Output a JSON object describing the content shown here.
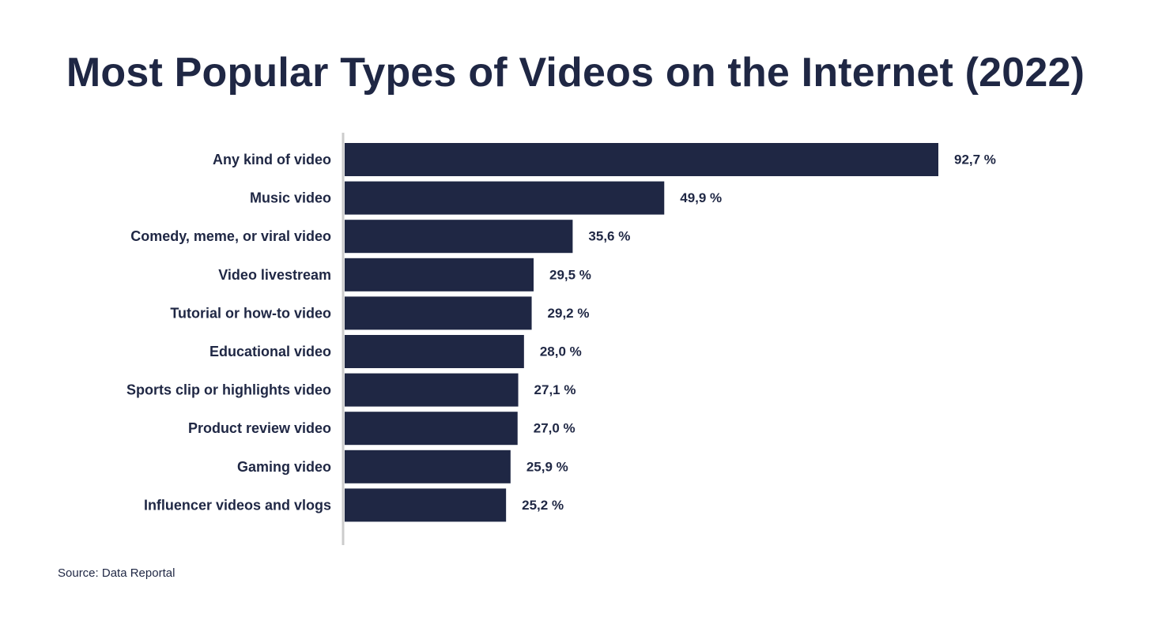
{
  "chart_data": {
    "type": "bar",
    "orientation": "horizontal",
    "title": "Most Popular Types of Videos on the Internet (2022)",
    "categories": [
      "Any kind of video",
      "Music video",
      "Comedy, meme, or viral video",
      "Video livestream",
      "Tutorial or how-to video",
      "Educational video",
      "Sports clip or highlights video",
      "Product review video",
      "Gaming video",
      "Influencer videos and vlogs"
    ],
    "values": [
      92.7,
      49.9,
      35.6,
      29.5,
      29.2,
      28.0,
      27.1,
      27.0,
      25.9,
      25.2
    ],
    "value_labels": [
      "92,7 %",
      "49,9 %",
      "35,6 %",
      "29,5 %",
      "29,2 %",
      "28,0 %",
      "27,1 %",
      "27,0 %",
      "25,9 %",
      "25,2 %"
    ],
    "unit": "%",
    "xlim": [
      0,
      100
    ],
    "grid": false,
    "legend": "none",
    "colors": {
      "bar": "#1f2744",
      "axis": "#cccccc",
      "text": "#1f2744"
    }
  },
  "source": "Source: Data Reportal"
}
